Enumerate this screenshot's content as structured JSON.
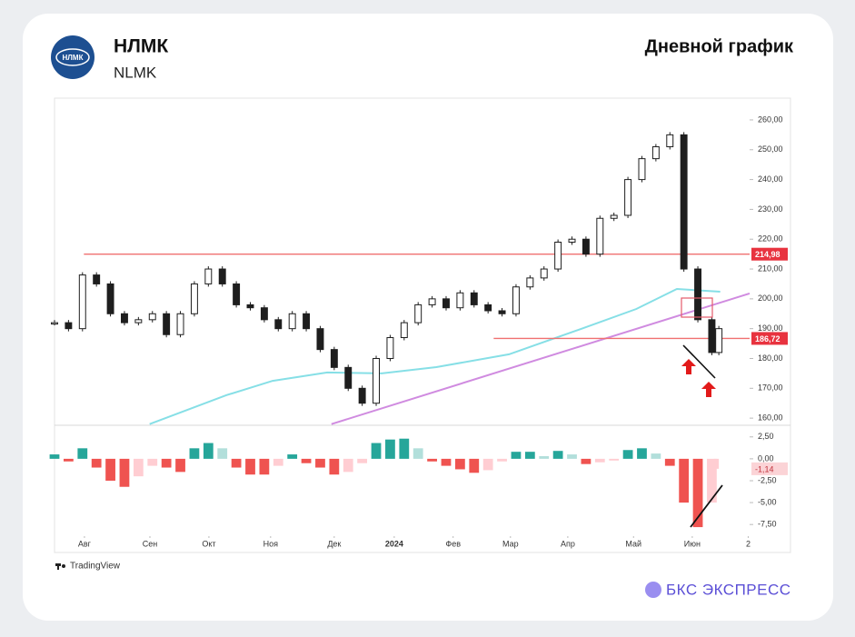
{
  "header": {
    "logo_text": "НЛМК",
    "title": "НЛМК",
    "subtitle": "NLMK",
    "chart_label": "Дневной график"
  },
  "footer": {
    "source": "TradingView",
    "brand": "БКС ЭКСПРЕСС"
  },
  "chart_data": [
    {
      "type": "candlestick",
      "color": "#1e1e1e",
      "x": [
        0,
        1,
        2,
        3,
        4,
        5,
        6,
        7,
        8,
        9,
        10,
        11,
        12,
        13,
        14,
        15,
        16,
        17,
        18,
        19,
        20,
        21,
        22,
        23,
        24,
        25,
        26,
        27,
        28,
        29,
        30,
        31,
        32,
        33,
        34,
        35,
        36,
        37,
        38,
        39,
        40,
        41,
        42,
        43,
        44,
        45,
        46,
        47,
        47.5
      ],
      "close": [
        192,
        190,
        208,
        205,
        195,
        192,
        193,
        195,
        188,
        195,
        205,
        210,
        205,
        198,
        197,
        193,
        190,
        195,
        190,
        183,
        177,
        170,
        165,
        180,
        187,
        192,
        198,
        200,
        197,
        202,
        198,
        196,
        195,
        204,
        207,
        210,
        219,
        220,
        215,
        227,
        228,
        240,
        247,
        251,
        255,
        210,
        193,
        182,
        190
      ],
      "xlim": [
        0,
        49.7
      ],
      "ylim": [
        157.6,
        267.3
      ],
      "yticks": [
        {
          "value": 160,
          "label": "160,00"
        },
        {
          "value": 170,
          "label": "170,00"
        },
        {
          "value": 180,
          "label": "180,00"
        },
        {
          "value": 190,
          "label": "190,00"
        },
        {
          "value": 200,
          "label": "200,00"
        },
        {
          "value": 210,
          "label": "210,00"
        },
        {
          "value": 220,
          "label": "220,00"
        },
        {
          "value": 230,
          "label": "230,00"
        },
        {
          "value": 240,
          "label": "240,00"
        },
        {
          "value": 250,
          "label": "250,00"
        },
        {
          "value": 260,
          "label": "260,00"
        }
      ],
      "levels": [
        {
          "value": 214.98,
          "label": "214,98",
          "start": 2.1,
          "color": "#f07070"
        },
        {
          "value": 186.72,
          "label": "186,72",
          "start": 31.4,
          "color": "#f07070"
        }
      ],
      "ma": {
        "color": "#86dfe6",
        "x": [
          6.8,
          12.3,
          15.6,
          19.5,
          23.4,
          27.3,
          32.5,
          37.7,
          41.6,
          44.5,
          47.6
        ],
        "y": [
          158,
          167.7,
          172.5,
          175.3,
          175,
          177.1,
          181.4,
          190,
          196.6,
          203.3,
          202.4
        ]
      },
      "trendline": {
        "color": "#d08be0",
        "x": [
          19.8,
          49.7
        ],
        "y": [
          158,
          201.8
        ]
      }
    },
    {
      "type": "histogram",
      "colors": {
        "pos_up": "#26a69a",
        "pos_down": "#b2dfdb",
        "neg_down": "#ef5350",
        "neg_up": "#ffcdd2"
      },
      "x": [
        0,
        1,
        2,
        3,
        4,
        5,
        6,
        7,
        8,
        9,
        10,
        11,
        12,
        13,
        14,
        15,
        16,
        17,
        18,
        19,
        20,
        21,
        22,
        23,
        24,
        25,
        26,
        27,
        28,
        29,
        30,
        31,
        32,
        33,
        34,
        35,
        36,
        37,
        38,
        39,
        40,
        41,
        42,
        43,
        44,
        45,
        46,
        47,
        47.5
      ],
      "values": [
        0.5,
        -0.3,
        1.2,
        -1,
        -2.5,
        -3.2,
        -2,
        -0.8,
        -1,
        -1.5,
        1.2,
        1.8,
        1.2,
        -1,
        -1.8,
        -1.8,
        -0.8,
        0.5,
        -0.5,
        -1,
        -1.8,
        -1.5,
        -0.5,
        1.8,
        2.2,
        2.3,
        1.2,
        -0.3,
        -0.8,
        -1.2,
        -1.6,
        -1.3,
        -0.3,
        0.8,
        0.8,
        0.3,
        0.9,
        0.5,
        -0.6,
        -0.4,
        -0.2,
        1,
        1.2,
        0.6,
        -0.8,
        -5,
        -7.8,
        -5,
        -1.14
      ],
      "last_label": {
        "value": -1.14,
        "label": "-1,14"
      },
      "xlim": [
        0,
        49.7
      ],
      "ylim": [
        -8.83,
        3.62
      ],
      "yticks": [
        {
          "value": 2.5,
          "label": "2,50"
        },
        {
          "value": 0,
          "label": "0,00"
        },
        {
          "value": -2.5,
          "label": "-2,50"
        },
        {
          "value": -5,
          "label": "-5,00"
        },
        {
          "value": -7.5,
          "label": "-7,50"
        }
      ],
      "xticks": [
        {
          "value": 2.14,
          "label": "Авг"
        },
        {
          "value": 6.82,
          "label": "Сен"
        },
        {
          "value": 11.04,
          "label": "Окт"
        },
        {
          "value": 15.45,
          "label": "Ноя"
        },
        {
          "value": 20,
          "label": "Дек"
        },
        {
          "value": 24.29,
          "label": "2024"
        },
        {
          "value": 28.5,
          "label": "Фев"
        },
        {
          "value": 32.6,
          "label": "Мар"
        },
        {
          "value": 36.7,
          "label": "Апр"
        },
        {
          "value": 41.4,
          "label": "Май"
        },
        {
          "value": 45.6,
          "label": "Июн"
        },
        {
          "value": 49.6,
          "label": "2"
        }
      ]
    }
  ]
}
